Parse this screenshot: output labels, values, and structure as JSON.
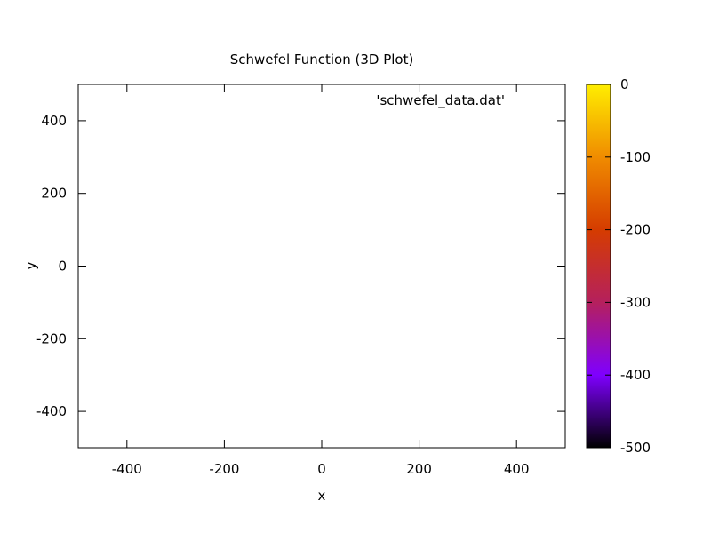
{
  "chart_data": {
    "type": "heatmap",
    "title": "Schwefel Function (3D Plot)",
    "xlabel": "x",
    "ylabel": "y",
    "xlim": [
      -500,
      500
    ],
    "ylim": [
      -500,
      500
    ],
    "xticks": [
      -400,
      -200,
      0,
      200,
      400
    ],
    "yticks": [
      -400,
      -200,
      0,
      200,
      400
    ],
    "xtick_labels": [
      "-400",
      "-200",
      "0",
      "200",
      "400"
    ],
    "ytick_labels": [
      "-400",
      "-200",
      "0",
      "200",
      "400"
    ],
    "legend": {
      "entries": [
        "'schwefel_data.dat'"
      ],
      "placement": "top-right"
    },
    "colorbar": {
      "range": [
        -500,
        0
      ],
      "ticks": [
        0,
        -100,
        -200,
        -300,
        -400,
        -500
      ],
      "tick_labels": [
        "0",
        "-100",
        "-200",
        "-300",
        "-400",
        "-500"
      ],
      "palette": [
        "#000000",
        "#7f00ff",
        "#b5205d",
        "#d53c00",
        "#f08c00",
        "#ffee00"
      ]
    },
    "grid": false,
    "series": [],
    "colors": {
      "frame": "#000000",
      "background": "#ffffff"
    }
  }
}
